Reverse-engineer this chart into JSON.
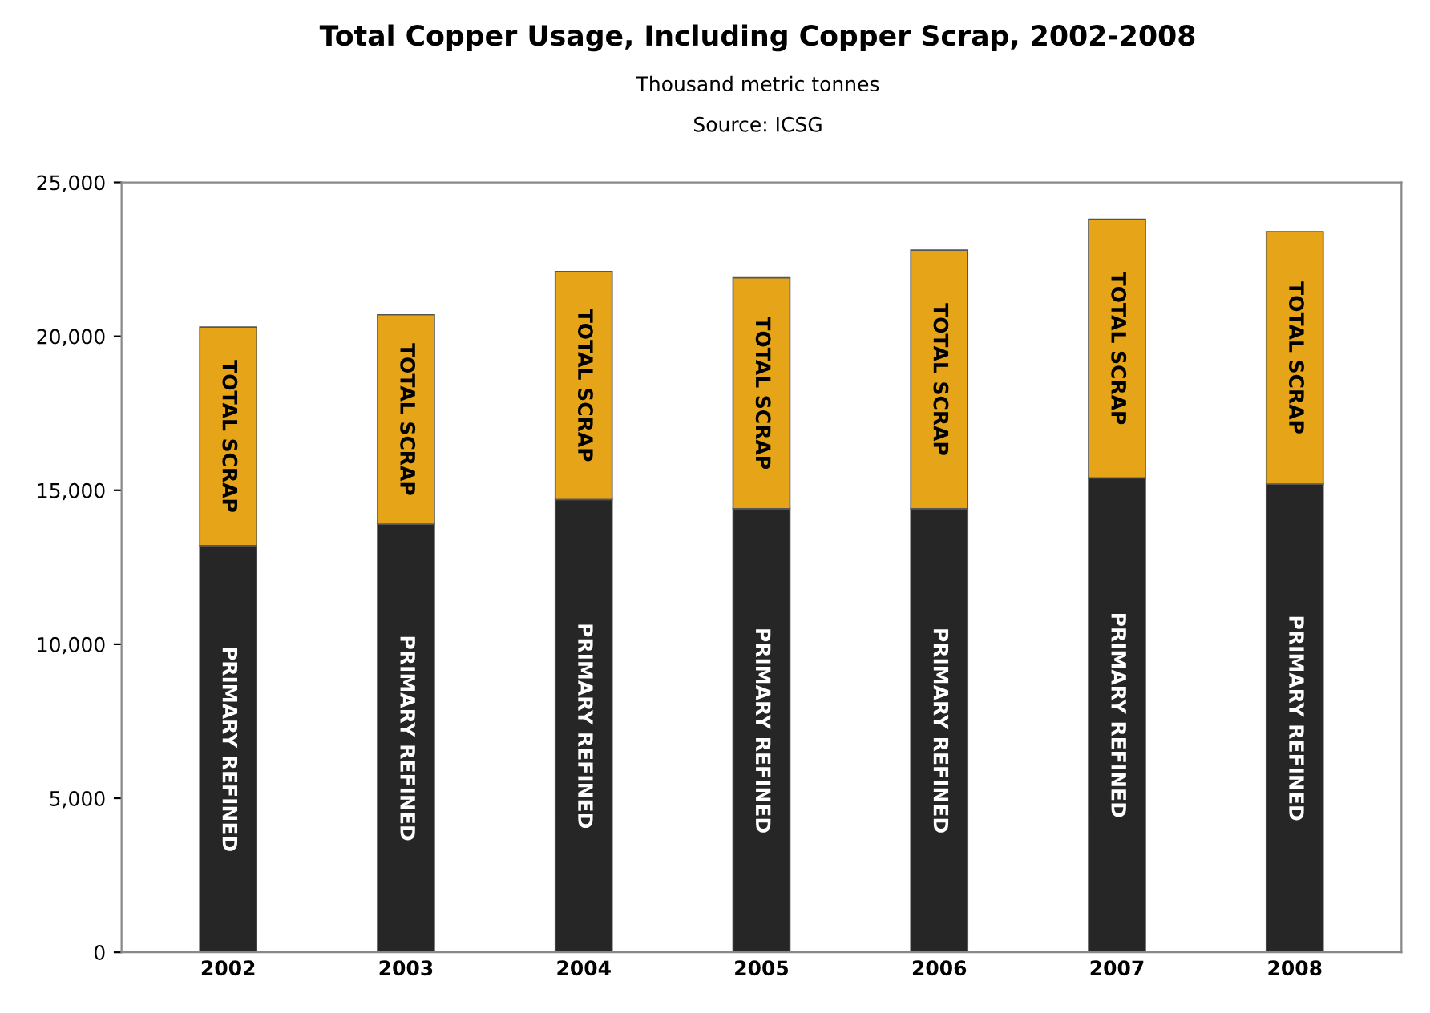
{
  "chart_data": {
    "type": "bar",
    "title": "Total Copper Usage, Including Copper Scrap, 2002-2008",
    "subtitle": "Thousand metric tonnes",
    "annotations": [
      "Source: ICSG"
    ],
    "categories": [
      "2002",
      "2003",
      "2004",
      "2005",
      "2006",
      "2007",
      "2008"
    ],
    "stacked": true,
    "series": [
      {
        "name": "PRIMARY REFINED",
        "color": "#262626",
        "values": [
          13200,
          13900,
          14700,
          14400,
          14400,
          15400,
          15200
        ]
      },
      {
        "name": "TOTAL SCRAP",
        "color": "#e6a418",
        "values": [
          7100,
          6800,
          7400,
          7500,
          8400,
          8400,
          8200
        ]
      }
    ],
    "ylim": [
      0,
      25000
    ],
    "yticks": [
      {
        "value": 0,
        "label": "0"
      },
      {
        "value": 5000,
        "label": "5,000"
      },
      {
        "value": 10000,
        "label": "10,000"
      },
      {
        "value": 15000,
        "label": "15,000"
      },
      {
        "value": 20000,
        "label": "20,000"
      },
      {
        "value": 25000,
        "label": "25,000"
      }
    ],
    "grid": false,
    "legend": false
  }
}
